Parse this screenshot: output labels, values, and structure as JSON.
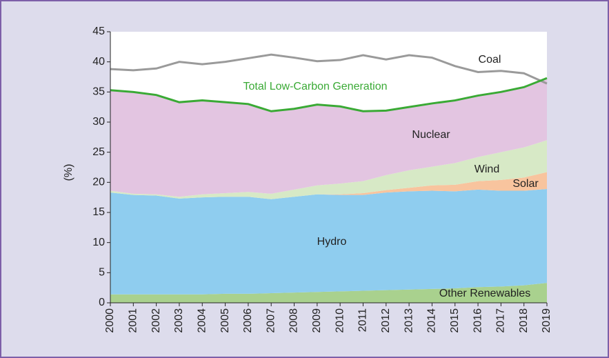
{
  "chart_data": {
    "type": "stacked-area",
    "y_label": "(%)",
    "categories": [
      "2000",
      "2001",
      "2002",
      "2003",
      "2004",
      "2005",
      "2006",
      "2007",
      "2008",
      "2009",
      "2010",
      "2011",
      "2012",
      "2013",
      "2014",
      "2015",
      "2016",
      "2017",
      "2018",
      "2019"
    ],
    "ylim": [
      0,
      45
    ],
    "yticks": [
      0,
      5,
      10,
      15,
      20,
      25,
      30,
      35,
      40,
      45
    ],
    "series": [
      {
        "name": "Other Renewables",
        "kind": "area",
        "color": "#a9d18e",
        "values": [
          1.4,
          1.4,
          1.4,
          1.4,
          1.4,
          1.5,
          1.5,
          1.6,
          1.7,
          1.8,
          1.9,
          2.0,
          2.1,
          2.2,
          2.3,
          2.4,
          2.6,
          2.7,
          2.9,
          3.3
        ]
      },
      {
        "name": "Hydro",
        "kind": "area",
        "color": "#8fcdef",
        "values": [
          16.9,
          16.5,
          16.4,
          15.9,
          16.1,
          16.1,
          16.1,
          15.6,
          15.9,
          16.2,
          16.0,
          15.9,
          16.2,
          16.3,
          16.3,
          16.1,
          16.2,
          15.9,
          15.7,
          15.6
        ]
      },
      {
        "name": "Solar",
        "kind": "area",
        "color": "#f8c49e",
        "values": [
          0,
          0,
          0,
          0,
          0,
          0,
          0,
          0,
          0,
          0,
          0.1,
          0.3,
          0.4,
          0.6,
          0.9,
          1.1,
          1.4,
          1.8,
          2.2,
          2.8
        ]
      },
      {
        "name": "Wind",
        "kind": "area",
        "color": "#d7e9c6",
        "values": [
          0.3,
          0.2,
          0.2,
          0.3,
          0.5,
          0.6,
          0.8,
          0.9,
          1.2,
          1.5,
          1.8,
          2.0,
          2.5,
          2.9,
          3.1,
          3.6,
          4.0,
          4.6,
          5.0,
          5.3
        ]
      },
      {
        "name": "Nuclear",
        "kind": "area",
        "color": "#e3c5e1",
        "values": [
          16.7,
          16.9,
          16.5,
          15.7,
          15.6,
          15.1,
          14.6,
          13.7,
          13.4,
          13.4,
          12.8,
          11.6,
          10.7,
          10.5,
          10.5,
          10.4,
          10.2,
          10.0,
          10.0,
          10.3
        ]
      },
      {
        "name": "Coal",
        "kind": "line",
        "color": "#9a9a9a",
        "values": [
          38.8,
          38.6,
          38.9,
          40.0,
          39.6,
          40.0,
          40.6,
          41.2,
          40.7,
          40.1,
          40.3,
          41.1,
          40.4,
          41.1,
          40.7,
          39.3,
          38.3,
          38.5,
          38.1,
          36.4
        ]
      },
      {
        "name": "Total Low-Carbon Generation",
        "kind": "line",
        "color": "#3aaa35",
        "values": [
          35.3,
          35.0,
          34.5,
          33.3,
          33.6,
          33.3,
          33.0,
          31.8,
          32.2,
          32.9,
          32.6,
          31.8,
          31.9,
          32.5,
          33.1,
          33.6,
          34.4,
          35.0,
          35.8,
          37.3
        ]
      }
    ]
  }
}
